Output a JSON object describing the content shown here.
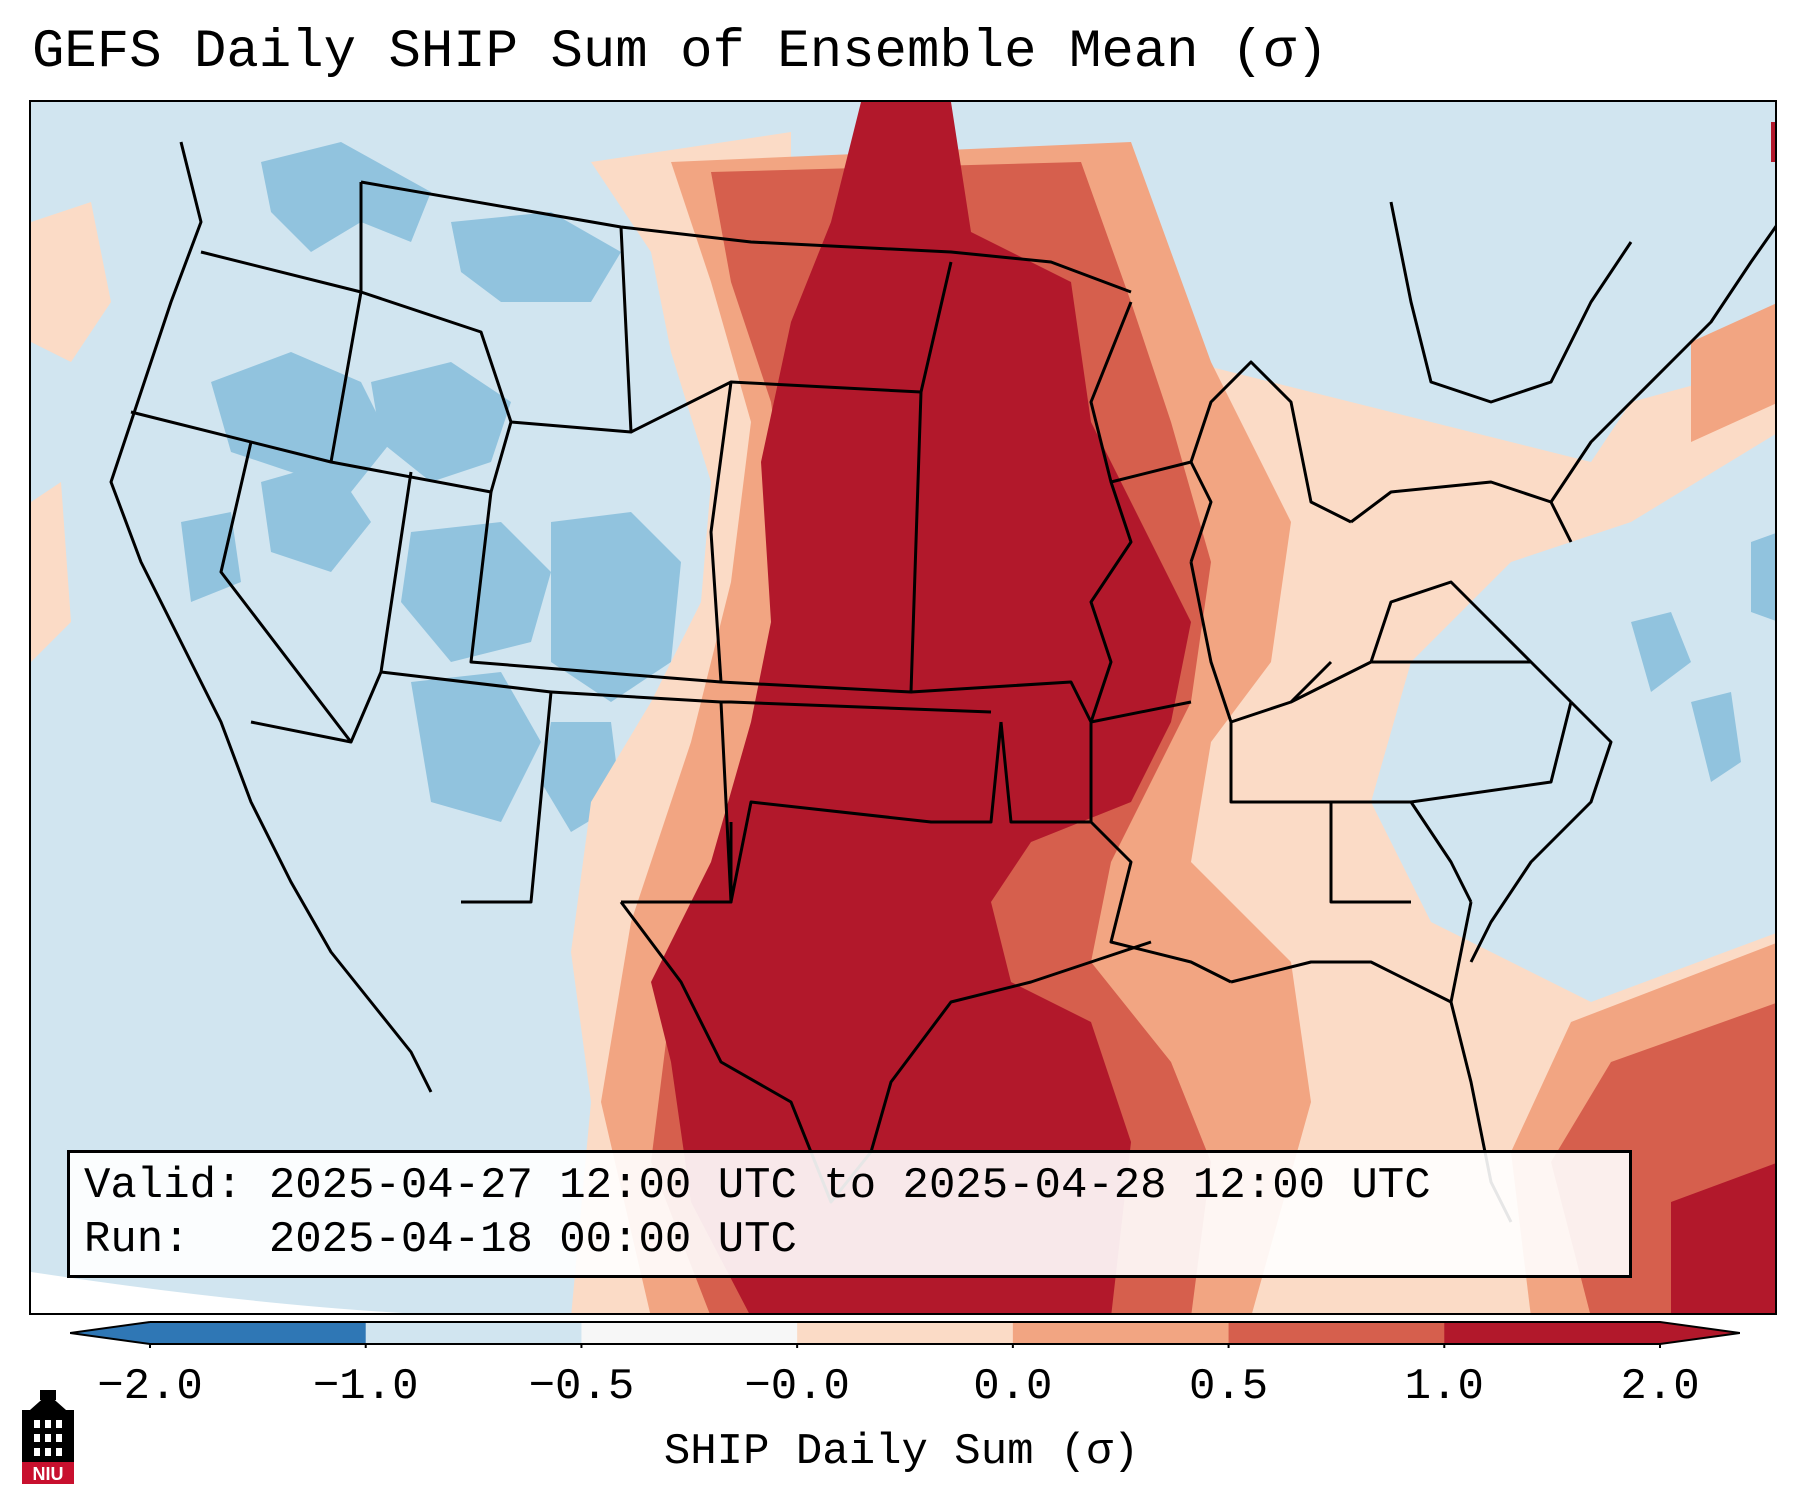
{
  "title": "GEFS Daily SHIP Sum of Ensemble Mean (σ)",
  "info": {
    "valid_line": "Valid: 2025-04-27 12:00 UTC to 2025-04-28 12:00 UTC",
    "run_line": "Run:   2025-04-18 00:00 UTC"
  },
  "colorbar": {
    "label": "SHIP Daily Sum (σ)",
    "ticks": [
      "−2.0",
      "−1.0",
      "−0.5",
      "−0.0",
      "0.0",
      "0.5",
      "1.0",
      "2.0"
    ],
    "colors": [
      "#2f77b5",
      "#91c3de",
      "#d1e5f0",
      "#f7f7f7",
      "#fbdbc6",
      "#f2a582",
      "#d65f4d",
      "#b2182b"
    ],
    "extend": "both"
  },
  "map": {
    "region": "Contiguous United States",
    "palette": {
      "below_minus_1": "#91c3de",
      "minus_half_to_zero": "#d1e5f0",
      "zero_to_half": "#fbdbc6",
      "half_to_one": "#f2a582",
      "one_to_two": "#d65f4d",
      "above_two": "#b2182b"
    }
  },
  "logo": {
    "text": "NIU",
    "bg_color": "#c8102e",
    "icon": "university-tower-icon"
  }
}
